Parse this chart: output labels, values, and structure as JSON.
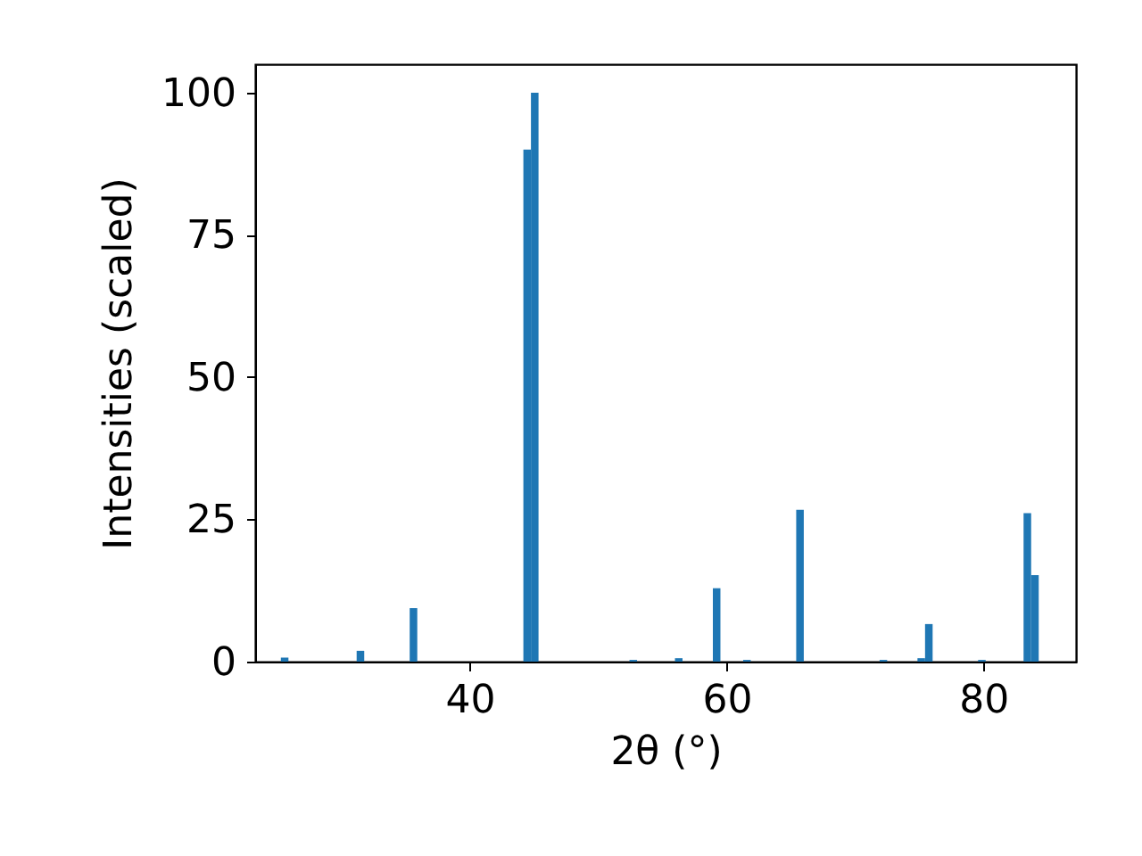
{
  "chart_data": {
    "type": "histogram",
    "xlabel": "2θ (°)",
    "ylabel": "Intensities (scaled)",
    "color": "#1f77b4",
    "bins": [
      25.3,
      25.89,
      26.48,
      27.07,
      27.66,
      28.25,
      28.84,
      29.43,
      30.02,
      30.61,
      31.2,
      31.79,
      32.38,
      32.97,
      33.56,
      34.15,
      34.74,
      35.33,
      35.92,
      36.51,
      37.1,
      37.69,
      38.28,
      38.87,
      39.46,
      40.05,
      40.64,
      41.23,
      41.82,
      42.41,
      43.0,
      43.59,
      44.18,
      44.77,
      45.36,
      45.95,
      46.54,
      47.13,
      47.72,
      48.31,
      48.9,
      49.49,
      50.08,
      50.67,
      51.26,
      51.85,
      52.44,
      53.03,
      53.62,
      54.21,
      54.8,
      55.39,
      55.98,
      56.57,
      57.16,
      57.75,
      58.34,
      58.93,
      59.52,
      60.11,
      60.7,
      61.29,
      61.88,
      62.47,
      63.06,
      63.65,
      64.24,
      64.83,
      65.42,
      66.01,
      66.6,
      67.19,
      67.78,
      68.37,
      68.96,
      69.55,
      70.14,
      70.73,
      71.32,
      71.91,
      72.5,
      73.09,
      73.68,
      74.27,
      74.86,
      75.45,
      76.04,
      76.63,
      77.22,
      77.81,
      78.4,
      78.99,
      79.58,
      80.17,
      80.76,
      81.35,
      81.94,
      82.53,
      83.12,
      83.71,
      84.3
    ],
    "values": [
      0.7,
      0,
      0,
      0,
      0,
      0,
      0,
      0,
      0,
      0,
      1.9,
      0,
      0,
      0,
      0,
      0,
      0,
      9.4,
      0,
      0,
      0,
      0,
      0,
      0,
      0,
      0,
      0,
      0,
      0,
      0,
      0,
      0,
      90,
      100,
      0,
      0,
      0,
      0,
      0,
      0,
      0,
      0,
      0,
      0,
      0,
      0,
      0.3,
      0,
      0,
      0,
      0,
      0,
      0.6,
      0,
      0,
      0,
      0,
      12.9,
      0,
      0,
      0,
      0.3,
      0,
      0,
      0,
      0,
      0,
      0,
      26.7,
      0,
      0,
      0,
      0,
      0,
      0,
      0,
      0,
      0,
      0,
      0.3,
      0,
      0,
      0,
      0,
      0.6,
      6.6,
      0,
      0,
      0,
      0,
      0,
      0,
      0.3,
      0,
      0,
      0,
      0,
      0,
      26.1,
      15.2
    ],
    "xlim": [
      23.3,
      87.2
    ],
    "xticks": [
      40,
      60,
      80
    ],
    "ylim": [
      0,
      105
    ],
    "yticks": [
      0,
      25,
      50,
      75,
      100
    ],
    "grid": false
  }
}
